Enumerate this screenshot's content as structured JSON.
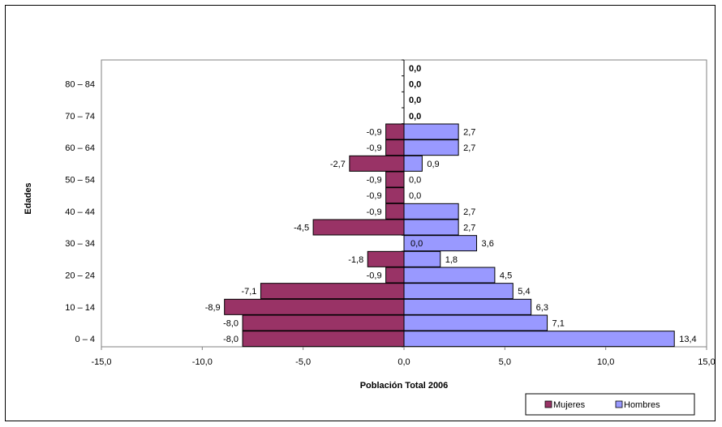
{
  "chart_data": {
    "type": "bar",
    "orientation": "horizontal",
    "title": "",
    "xlabel": "Población Total 2006",
    "ylabel": "Edades",
    "xlim": [
      -15,
      15
    ],
    "x_ticks": [
      "-15,0",
      "-10,0",
      "-5,0",
      "0,0",
      "5,0",
      "10,0",
      "15,0"
    ],
    "y_tick_labels": [
      "0 – 4",
      "10 – 14",
      "20 – 24",
      "30 – 34",
      "40 – 44",
      "50 – 54",
      "60 – 64",
      "70 – 74",
      "80 – 84"
    ],
    "legend_position": "bottom-right",
    "series": [
      {
        "name": "Mujeres",
        "color": "#993366",
        "values": [
          -8.0,
          -8.0,
          -8.9,
          -7.1,
          -0.9,
          -1.8,
          null,
          -4.5,
          -0.9,
          -0.9,
          -0.9,
          -2.7,
          -0.9,
          -0.9,
          null,
          null,
          null,
          null
        ],
        "labels": [
          "-8,0",
          "-8,0",
          "-8,9",
          "-7,1",
          "-0,9",
          "-1,8",
          "",
          "-4,5",
          "-0,9",
          "-0,9",
          "-0,9",
          "-2,7",
          "-0,9",
          "-0,9",
          "",
          "",
          "",
          ""
        ]
      },
      {
        "name": "Hombres",
        "color": "#9999ff",
        "values": [
          13.4,
          7.1,
          6.3,
          5.4,
          4.5,
          1.8,
          3.6,
          2.7,
          2.7,
          0.0,
          0.0,
          0.9,
          2.7,
          2.7,
          0.0,
          0.0,
          0.0,
          0.0
        ],
        "labels": [
          "13,4",
          "7,1",
          "6,3",
          "5,4",
          "4,5",
          "1,8",
          "3,6",
          "2,7",
          "2,7",
          "0,0",
          "0,0",
          "0,9",
          "2,7",
          "2,7",
          "0,0",
          "0,0",
          "0,0",
          "0,0"
        ],
        "bold_labels": [
          false,
          false,
          false,
          false,
          false,
          false,
          false,
          false,
          false,
          false,
          false,
          false,
          false,
          false,
          true,
          true,
          true,
          true
        ]
      }
    ],
    "extra_labels": [
      {
        "row": 6,
        "text": "0,0",
        "side": "inside-right"
      }
    ]
  }
}
